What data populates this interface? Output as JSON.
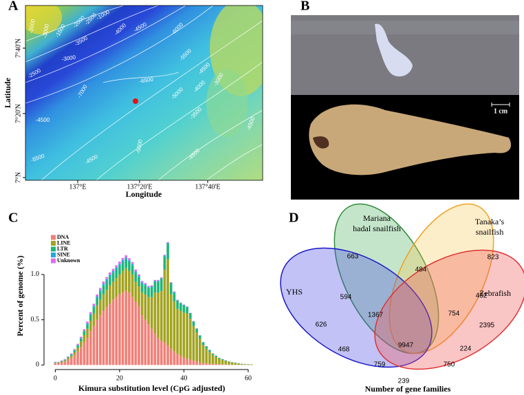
{
  "panel_labels": [
    "A",
    "B",
    "C",
    "D"
  ],
  "map": {
    "xlabel": "Longitude",
    "ylabel": "Latitude",
    "xticks": [
      "137°E",
      "137°20'E",
      "137°40'E"
    ],
    "yticks": [
      "7°40'N",
      "7°20'N",
      "7°N"
    ],
    "contour_labels": [
      "-1000",
      "-1500",
      "-2000",
      "-3000",
      "-2000",
      "-2500",
      "-3500",
      "-4000",
      "-4500",
      "-6000",
      "-2500",
      "-3000",
      "-5500",
      "-7000",
      "-6500",
      "-4500",
      "-5000",
      "-4000",
      "-3000",
      "-3500",
      "-4500",
      "-4500",
      "-5000",
      "-4500",
      "-4500",
      "-5500"
    ]
  },
  "photo": {
    "scale_label": "1 cm"
  },
  "chart_data": [
    {
      "type": "stacked-bar",
      "xlabel": "Kimura substitution level (CpG adjusted)",
      "ylabel": "Percent of genome (%)",
      "x": [
        0,
        1,
        2,
        3,
        4,
        5,
        6,
        7,
        8,
        9,
        10,
        11,
        12,
        13,
        14,
        15,
        16,
        17,
        18,
        19,
        20,
        21,
        22,
        23,
        24,
        25,
        26,
        27,
        28,
        29,
        30,
        31,
        32,
        33,
        34,
        35,
        36,
        37,
        38,
        39,
        40,
        41,
        42,
        43,
        44,
        45,
        46,
        47,
        48,
        49,
        50,
        51,
        52,
        53,
        54,
        55,
        56,
        57,
        58,
        59,
        60,
        61
      ],
      "xlim": [
        -3.5,
        63
      ],
      "xticks": [
        0,
        20,
        40,
        60
      ],
      "ylim": [
        -0.05,
        1.6
      ],
      "yticks": [
        0,
        0.5,
        {
          "value": 1,
          "label": "1.0"
        }
      ],
      "legend": "top-left",
      "series": [
        {
          "name": "DNA",
          "color": "#f08078",
          "values": [
            0.02,
            0.02,
            0.03,
            0.04,
            0.06,
            0.08,
            0.11,
            0.15,
            0.2,
            0.25,
            0.3,
            0.37,
            0.43,
            0.5,
            0.55,
            0.6,
            0.64,
            0.68,
            0.72,
            0.75,
            0.78,
            0.8,
            0.82,
            0.8,
            0.75,
            0.7,
            0.65,
            0.55,
            0.5,
            0.45,
            0.4,
            0.35,
            0.3,
            0.27,
            0.25,
            0.22,
            0.18,
            0.15,
            0.12,
            0.1,
            0.08,
            0.07,
            0.06,
            0.05,
            0.04,
            0.03,
            0.02,
            0.02,
            0.015,
            0.01,
            0.01,
            0.008,
            0.006,
            0.005,
            0.004,
            0.003,
            0.002,
            0.002,
            0.001,
            0.001,
            0.001,
            0.001
          ]
        },
        {
          "name": "LINE",
          "color": "#a3a320",
          "values": [
            0.005,
            0.005,
            0.008,
            0.01,
            0.015,
            0.02,
            0.03,
            0.04,
            0.06,
            0.08,
            0.1,
            0.12,
            0.14,
            0.16,
            0.17,
            0.18,
            0.19,
            0.2,
            0.2,
            0.21,
            0.22,
            0.24,
            0.25,
            0.24,
            0.25,
            0.22,
            0.22,
            0.25,
            0.28,
            0.3,
            0.35,
            0.45,
            0.5,
            0.55,
            0.8,
            0.95,
            0.6,
            0.55,
            0.5,
            0.5,
            0.5,
            0.5,
            0.45,
            0.38,
            0.32,
            0.26,
            0.2,
            0.16,
            0.13,
            0.1,
            0.08,
            0.06,
            0.05,
            0.04,
            0.03,
            0.025,
            0.02,
            0.015,
            0.01,
            0.008,
            0.006,
            0.005
          ]
        },
        {
          "name": "LTR",
          "color": "#1fb57a",
          "values": [
            0.005,
            0.005,
            0.006,
            0.008,
            0.01,
            0.015,
            0.02,
            0.025,
            0.03,
            0.04,
            0.05,
            0.06,
            0.07,
            0.08,
            0.09,
            0.1,
            0.1,
            0.1,
            0.1,
            0.1,
            0.1,
            0.1,
            0.1,
            0.1,
            0.1,
            0.1,
            0.1,
            0.1,
            0.1,
            0.1,
            0.11,
            0.12,
            0.12,
            0.13,
            0.15,
            0.17,
            0.12,
            0.1,
            0.09,
            0.08,
            0.08,
            0.07,
            0.06,
            0.05,
            0.04,
            0.035,
            0.03,
            0.025,
            0.02,
            0.015,
            0.012,
            0.01,
            0.008,
            0.006,
            0.005,
            0.004,
            0.003,
            0.002,
            0.002,
            0.001,
            0.001,
            0.001
          ]
        },
        {
          "name": "SINE",
          "color": "#22a8e0",
          "values": [
            0.002,
            0.002,
            0.003,
            0.003,
            0.004,
            0.005,
            0.006,
            0.007,
            0.008,
            0.01,
            0.012,
            0.014,
            0.015,
            0.016,
            0.017,
            0.018,
            0.018,
            0.018,
            0.018,
            0.018,
            0.018,
            0.018,
            0.018,
            0.017,
            0.016,
            0.015,
            0.014,
            0.013,
            0.012,
            0.011,
            0.01,
            0.01,
            0.01,
            0.009,
            0.009,
            0.009,
            0.008,
            0.007,
            0.006,
            0.005,
            0.005,
            0.004,
            0.004,
            0.003,
            0.003,
            0.003,
            0.002,
            0.002,
            0.002,
            0.002,
            0.001,
            0.001,
            0.001,
            0.001,
            0.001,
            0.001,
            0.001,
            0.001,
            0.001,
            0.001,
            0.001,
            0.001
          ]
        },
        {
          "name": "Unknown",
          "color": "#e06cf0",
          "values": [
            0.003,
            0.003,
            0.004,
            0.005,
            0.006,
            0.008,
            0.01,
            0.012,
            0.014,
            0.016,
            0.018,
            0.02,
            0.022,
            0.024,
            0.025,
            0.025,
            0.025,
            0.025,
            0.025,
            0.025,
            0.025,
            0.025,
            0.024,
            0.023,
            0.022,
            0.02,
            0.018,
            0.016,
            0.014,
            0.012,
            0.01,
            0.01,
            0.01,
            0.009,
            0.009,
            0.008,
            0.007,
            0.006,
            0.005,
            0.005,
            0.004,
            0.004,
            0.003,
            0.003,
            0.003,
            0.002,
            0.002,
            0.002,
            0.002,
            0.002,
            0.001,
            0.001,
            0.001,
            0.001,
            0.001,
            0.001,
            0.001,
            0.001,
            0.001,
            0.001,
            0.001,
            0.001
          ]
        }
      ]
    },
    {
      "type": "venn",
      "caption": "Number of gene families",
      "sets": [
        {
          "name_lines": [
            "Mariana",
            "hadal snailfish"
          ],
          "color": "#2e8b3a"
        },
        {
          "name_lines": [
            "Tanaka’s",
            "snailfish"
          ],
          "color": "#f0a020"
        },
        {
          "name_lines": [
            "YHS"
          ],
          "color": "#1818c8"
        },
        {
          "name_lines": [
            "Zebrafish"
          ],
          "color": "#e03030"
        }
      ],
      "values": [
        663,
        484,
        823,
        594,
        1367,
        754,
        432,
        626,
        9947,
        2395,
        468,
        224,
        759,
        750,
        239
      ]
    }
  ]
}
